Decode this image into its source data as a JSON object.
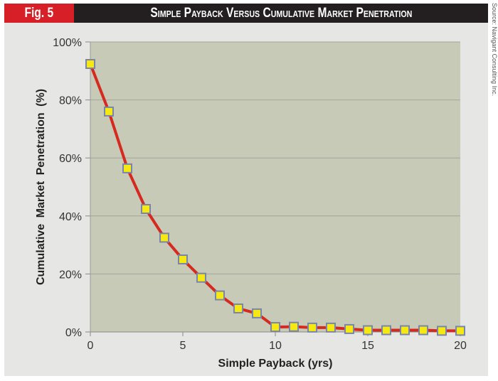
{
  "figure": {
    "label": "Fig. 5",
    "title": "Simple Payback Versus Cumulative Market Penetration",
    "source": "Source: Navigant Consulting Inc."
  },
  "colors": {
    "plot_bg": "#c8cab8",
    "line": "#d42a20",
    "marker_fill": "#f5e813",
    "marker_edge": "#7a86a8",
    "panel": "#e6e7e5"
  },
  "chart_data": {
    "type": "line",
    "title": "Simple Payback Versus Cumulative Market Penetration",
    "xlabel": "Simple Payback (yrs)",
    "ylabel": "Cumulative Market Penetration (%)",
    "xlim": [
      0,
      20
    ],
    "ylim": [
      0,
      100
    ],
    "xticks": [
      0,
      5,
      10,
      15,
      20
    ],
    "xtick_labels": [
      "0",
      "5",
      "10",
      "15",
      "20"
    ],
    "yticks": [
      0,
      20,
      40,
      60,
      80,
      100
    ],
    "ytick_labels": [
      "0%",
      "20%",
      "40%",
      "60%",
      "80%",
      "100%"
    ],
    "grid": "horizontal",
    "legend": "none",
    "series": [
      {
        "name": "Cumulative Market Penetration",
        "x": [
          0,
          1,
          2,
          3,
          4,
          5,
          6,
          7,
          8,
          9,
          10,
          11,
          12,
          13,
          14,
          15,
          16,
          17,
          18,
          19,
          20
        ],
        "y": [
          92.4,
          76,
          56.4,
          42.4,
          32.5,
          25,
          18.7,
          12.6,
          8.1,
          6.4,
          1.7,
          1.8,
          1.5,
          1.5,
          1.0,
          0.6,
          0.6,
          0.6,
          0.6,
          0.4,
          0.4
        ]
      }
    ]
  }
}
